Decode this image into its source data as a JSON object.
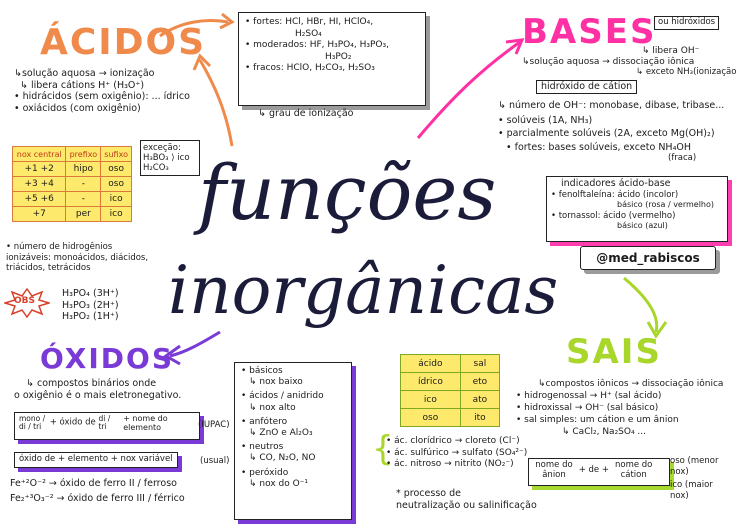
{
  "colors": {
    "acidos": "#f08a4b",
    "bases": "#ff2fa4",
    "oxidos": "#7a3ad6",
    "sais": "#a8d62b",
    "yellow": "#fde96b",
    "title": "#1b1b3a"
  },
  "title": {
    "line1": "funções",
    "line2": "inorgânicas",
    "handle": "@med_rabiscos"
  },
  "acidos": {
    "heading": "ÁCIDOS",
    "lines": [
      "↳solução aquosa → ionização",
      "↳ libera cátions H⁺ (H₃O⁺)",
      "• hidrácidos (sem oxigênio): ... ídrico",
      "• oxiácidos (com oxigênio)"
    ],
    "table": [
      [
        "nox central",
        "prefixo",
        "sufixo"
      ],
      [
        "+1 +2",
        "hipo",
        "oso"
      ],
      [
        "+3 +4",
        "-",
        "oso"
      ],
      [
        "+5 +6",
        "-",
        "ico"
      ],
      [
        "+7",
        "per",
        "ico"
      ]
    ],
    "excecao": [
      "exceção:",
      "H₃BO₃ ⟩ ico",
      "H₂CO₃"
    ],
    "hidrogenios": [
      "• número de hidrogênios",
      "ionizáveis: monoácidos, diácidos,",
      "triácidos, tetrácidos"
    ],
    "obs_label": "OBS",
    "obs": [
      "H₃PO₄ (3H⁺)",
      "H₃PO₃ (2H⁺)",
      "H₃PO₂ (1H⁺)"
    ],
    "forca": [
      "• fortes: HCl, HBr, HI, HClO₄,",
      "H₂SO₄",
      "• moderados: HF, H₃PO₄, H₃PO₃,",
      "H₃PO₂",
      "• fracos: HClO, H₂CO₃, H₂SO₃"
    ],
    "grau": "↳ grau de ionização"
  },
  "bases": {
    "heading": "BASES",
    "tag": "ou hidróxidos",
    "lines": [
      "↳ libera OH⁻",
      "↳solução aquosa → dissociação iônica",
      "↳ exceto NH₃(ionização)"
    ],
    "hidroxido": "hidróxido de cátion",
    "props": [
      "↳ número de OH⁻: monobase, dibase, tribase...",
      "• solúveis (1A, NH₃)",
      "• parcialmente solúveis (2A, exceto Mg(OH)₂)",
      "• fortes: bases solúveis, exceto NH₄OH",
      "(fraca)"
    ],
    "indicadores": [
      "indicadores ácido-base",
      "• fenolftaleína: ácido (incolor)",
      "básico (rosa / vermelho)",
      "• tornassol: ácido (vermelho)",
      "básico (azul)"
    ]
  },
  "oxidos": {
    "heading": "ÓXIDOS",
    "lines": [
      "↳ compostos binários onde",
      "o oxigênio é o mais eletronegativo."
    ],
    "iupac": {
      "prefix": "mono / di / tri",
      "mid": "+ óxido de",
      "prefix2": "di / tri",
      "end": "+ nome do elemento",
      "tag": "(IUPAC)"
    },
    "usual": {
      "box": "óxido de + elemento + nox variável",
      "tag": "(usual)"
    },
    "ferro": [
      "Fe⁺²O⁻² → óxido de ferro II / ferroso",
      "Fe₂⁺³O₃⁻² → óxido de ferro III / férrico"
    ],
    "tipos": [
      "• básicos",
      "↳ nox baixo",
      "• ácidos / anidrido",
      "↳ nox alto",
      "• anfótero",
      "↳ ZnO e Al₂O₃",
      "• neutros",
      "↳ CO, N₂O, NO",
      "• peróxido",
      "↳ nox do O⁻¹"
    ]
  },
  "sais": {
    "heading": "SAIS",
    "table": [
      [
        "ácido",
        "sal"
      ],
      [
        "ídrico",
        "eto"
      ],
      [
        "ico",
        "ato"
      ],
      [
        "oso",
        "ito"
      ]
    ],
    "exemplos": [
      "• ác. clorídrico → cloreto (Cl⁻)",
      "• ác. sulfúrico → sulfato (SO₄²⁻)",
      "• ác. nitroso → nitrito (NO₂⁻)"
    ],
    "processo": [
      "* processo de",
      "neutralização ou salinificação"
    ],
    "lines": [
      "↳compostos iônicos → dissociação iônica",
      "• hidrogenossal → H⁺ (sal ácido)",
      "• hidroxissal → OH⁻ (sal básico)",
      "• sal simples: um cátion e um ânion",
      "↳ CaCl₂, Na₂SO₄ ..."
    ],
    "nome": {
      "a": "nome do ânion",
      "plus1": "+ de +",
      "b": "nome do cátion"
    },
    "oso_ico": [
      "oso (menor nox)",
      "ico (maior nox)"
    ]
  }
}
